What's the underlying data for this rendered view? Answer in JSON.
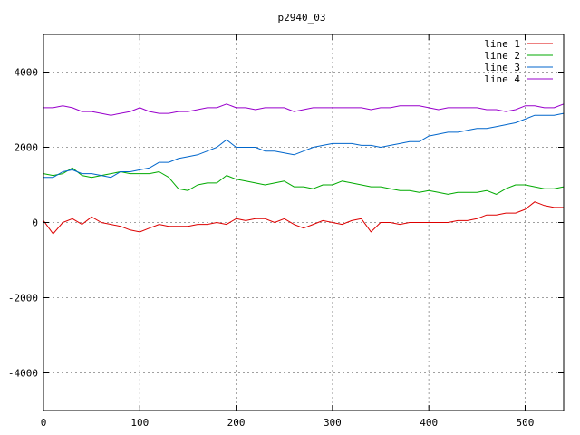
{
  "chart_data": {
    "type": "line",
    "title": "p2940_03",
    "xlabel": "",
    "ylabel": "",
    "xlim": [
      0,
      540
    ],
    "ylim": [
      -5000,
      5000
    ],
    "x_ticks": [
      0,
      100,
      200,
      300,
      400,
      500
    ],
    "y_ticks": [
      -4000,
      -2000,
      0,
      2000,
      4000
    ],
    "grid": true,
    "legend_position": "top-right",
    "x": [
      0,
      10,
      20,
      30,
      40,
      50,
      60,
      70,
      80,
      90,
      100,
      110,
      120,
      130,
      140,
      150,
      160,
      170,
      180,
      190,
      200,
      210,
      220,
      230,
      240,
      250,
      260,
      270,
      280,
      290,
      300,
      310,
      320,
      330,
      340,
      350,
      360,
      370,
      380,
      390,
      400,
      410,
      420,
      430,
      440,
      450,
      460,
      470,
      480,
      490,
      500,
      510,
      520,
      530,
      540
    ],
    "series": [
      {
        "name": "line 1",
        "color": "#dd0000",
        "values": [
          50,
          -300,
          0,
          100,
          -50,
          150,
          0,
          -50,
          -100,
          -200,
          -250,
          -150,
          -50,
          -100,
          -100,
          -100,
          -50,
          -50,
          0,
          -50,
          100,
          50,
          100,
          100,
          0,
          100,
          -50,
          -150,
          -50,
          50,
          0,
          -50,
          50,
          100,
          -250,
          0,
          0,
          -50,
          0,
          0,
          0,
          0,
          0,
          50,
          50,
          100,
          200,
          200,
          250,
          250,
          350,
          550,
          450,
          400,
          400
        ]
      },
      {
        "name": "line 2",
        "color": "#00aa00",
        "values": [
          1300,
          1250,
          1300,
          1450,
          1250,
          1200,
          1250,
          1300,
          1350,
          1300,
          1300,
          1300,
          1350,
          1200,
          900,
          850,
          1000,
          1050,
          1050,
          1250,
          1150,
          1100,
          1050,
          1000,
          1050,
          1100,
          950,
          950,
          900,
          1000,
          1000,
          1100,
          1050,
          1000,
          950,
          950,
          900,
          850,
          850,
          800,
          850,
          800,
          750,
          800,
          800,
          800,
          850,
          750,
          900,
          1000,
          1000,
          950,
          900,
          900,
          950
        ]
      },
      {
        "name": "line 3",
        "color": "#0066cc",
        "values": [
          1200,
          1200,
          1350,
          1400,
          1300,
          1300,
          1250,
          1200,
          1350,
          1350,
          1400,
          1450,
          1600,
          1600,
          1700,
          1750,
          1800,
          1900,
          2000,
          2200,
          2000,
          2000,
          2000,
          1900,
          1900,
          1850,
          1800,
          1900,
          2000,
          2050,
          2100,
          2100,
          2100,
          2050,
          2050,
          2000,
          2050,
          2100,
          2150,
          2150,
          2300,
          2350,
          2400,
          2400,
          2450,
          2500,
          2500,
          2550,
          2600,
          2650,
          2750,
          2850,
          2850,
          2850,
          2900
        ]
      },
      {
        "name": "line 4",
        "color": "#9900cc",
        "values": [
          3050,
          3050,
          3100,
          3050,
          2950,
          2950,
          2900,
          2850,
          2900,
          2950,
          3050,
          2950,
          2900,
          2900,
          2950,
          2950,
          3000,
          3050,
          3050,
          3150,
          3050,
          3050,
          3000,
          3050,
          3050,
          3050,
          2950,
          3000,
          3050,
          3050,
          3050,
          3050,
          3050,
          3050,
          3000,
          3050,
          3050,
          3100,
          3100,
          3100,
          3050,
          3000,
          3050,
          3050,
          3050,
          3050,
          3000,
          3000,
          2950,
          3000,
          3100,
          3100,
          3050,
          3050,
          3150
        ]
      }
    ]
  }
}
